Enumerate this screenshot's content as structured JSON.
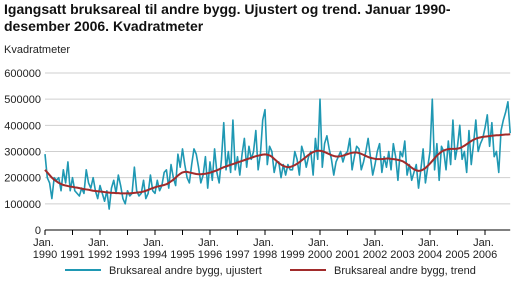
{
  "chart_data": {
    "type": "line",
    "title": [
      "Igangsatt bruksareal til andre bygg. Ujustert og trend. Januar 1990-",
      "desember 2006. Kvadratmeter"
    ],
    "y_label": "Kvadratmeter",
    "categories": [
      "Jan. 1990",
      null,
      null,
      null,
      null,
      null,
      null,
      null,
      null,
      null,
      null,
      null,
      "1991",
      null,
      null,
      null,
      null,
      null,
      null,
      null,
      null,
      null,
      null,
      null,
      "Jan. 1992",
      null,
      null,
      null,
      null,
      null,
      null,
      null,
      null,
      null,
      null,
      null,
      "1993",
      null,
      null,
      null,
      null,
      null,
      null,
      null,
      null,
      null,
      null,
      null,
      "Jan. 1994",
      null,
      null,
      null,
      null,
      null,
      null,
      null,
      null,
      null,
      null,
      null,
      "1995",
      null,
      null,
      null,
      null,
      null,
      null,
      null,
      null,
      null,
      null,
      null,
      "Jan. 1996",
      null,
      null,
      null,
      null,
      null,
      null,
      null,
      null,
      null,
      null,
      null,
      "1997",
      null,
      null,
      null,
      null,
      null,
      null,
      null,
      null,
      null,
      null,
      null,
      "Jan. 1998",
      null,
      null,
      null,
      null,
      null,
      null,
      null,
      null,
      null,
      null,
      null,
      "1999",
      null,
      null,
      null,
      null,
      null,
      null,
      null,
      null,
      null,
      null,
      null,
      "Jan. 2000",
      null,
      null,
      null,
      null,
      null,
      null,
      null,
      null,
      null,
      null,
      null,
      "2001",
      null,
      null,
      null,
      null,
      null,
      null,
      null,
      null,
      null,
      null,
      null,
      "Jan. 2002",
      null,
      null,
      null,
      null,
      null,
      null,
      null,
      null,
      null,
      null,
      null,
      "2003",
      null,
      null,
      null,
      null,
      null,
      null,
      null,
      null,
      null,
      null,
      null,
      "Jan. 2004",
      null,
      null,
      null,
      null,
      null,
      null,
      null,
      null,
      null,
      null,
      null,
      "2005",
      null,
      null,
      null,
      null,
      null,
      null,
      null,
      null,
      null,
      null,
      null,
      "Jan. 2006",
      null,
      null,
      null,
      null,
      null,
      null,
      null,
      null,
      null,
      null,
      null
    ],
    "series": [
      {
        "name": "Bruksareal andre bygg, ujustert",
        "color": "#1f98b3",
        "values": [
          290000,
          200000,
          180000,
          120000,
          200000,
          190000,
          200000,
          150000,
          230000,
          180000,
          260000,
          150000,
          200000,
          150000,
          140000,
          130000,
          160000,
          140000,
          230000,
          180000,
          160000,
          200000,
          150000,
          120000,
          170000,
          140000,
          110000,
          150000,
          80000,
          160000,
          190000,
          140000,
          210000,
          170000,
          120000,
          100000,
          150000,
          130000,
          140000,
          240000,
          150000,
          130000,
          140000,
          190000,
          120000,
          140000,
          210000,
          150000,
          140000,
          190000,
          150000,
          170000,
          220000,
          230000,
          160000,
          250000,
          200000,
          170000,
          290000,
          240000,
          310000,
          250000,
          200000,
          180000,
          250000,
          310000,
          290000,
          240000,
          180000,
          210000,
          280000,
          160000,
          260000,
          190000,
          310000,
          220000,
          180000,
          270000,
          410000,
          230000,
          300000,
          220000,
          420000,
          230000,
          280000,
          210000,
          290000,
          350000,
          240000,
          320000,
          270000,
          300000,
          380000,
          230000,
          290000,
          420000,
          460000,
          250000,
          320000,
          300000,
          220000,
          260000,
          260000,
          200000,
          250000,
          210000,
          250000,
          230000,
          230000,
          300000,
          270000,
          210000,
          320000,
          290000,
          240000,
          280000,
          300000,
          210000,
          350000,
          270000,
          500000,
          240000,
          330000,
          360000,
          310000,
          270000,
          210000,
          260000,
          280000,
          300000,
          260000,
          290000,
          300000,
          350000,
          230000,
          280000,
          320000,
          310000,
          230000,
          260000,
          300000,
          350000,
          280000,
          210000,
          250000,
          300000,
          330000,
          220000,
          280000,
          240000,
          300000,
          230000,
          330000,
          280000,
          190000,
          300000,
          280000,
          340000,
          210000,
          250000,
          190000,
          220000,
          250000,
          160000,
          230000,
          310000,
          180000,
          240000,
          300000,
          500000,
          230000,
          330000,
          190000,
          320000,
          300000,
          230000,
          340000,
          250000,
          420000,
          270000,
          320000,
          400000,
          270000,
          300000,
          220000,
          380000,
          250000,
          330000,
          420000,
          300000,
          330000,
          350000,
          390000,
          440000,
          320000,
          410000,
          280000,
          300000,
          220000,
          380000,
          420000,
          450000,
          490000,
          370000
        ]
      },
      {
        "name": "Bruksareal andre bygg, trend",
        "color": "#a12b2b",
        "values": [
          230000,
          220000,
          210000,
          200000,
          192000,
          186000,
          180000,
          176000,
          172000,
          170000,
          168000,
          166000,
          165000,
          163000,
          162000,
          160000,
          158000,
          156000,
          155000,
          154000,
          152000,
          150000,
          149000,
          148000,
          147000,
          146000,
          145000,
          144000,
          143000,
          142000,
          142000,
          141000,
          141000,
          140000,
          140000,
          140000,
          140000,
          140000,
          141000,
          142000,
          143000,
          144000,
          145000,
          147000,
          150000,
          153000,
          157000,
          160000,
          163000,
          166000,
          168000,
          170000,
          172000,
          175000,
          180000,
          186000,
          192000,
          200000,
          208000,
          215000,
          220000,
          222000,
          222000,
          220000,
          218000,
          216000,
          214000,
          213000,
          213000,
          214000,
          215000,
          217000,
          219000,
          222000,
          225000,
          228000,
          232000,
          236000,
          240000,
          243000,
          246000,
          249000,
          252000,
          255000,
          258000,
          261000,
          264000,
          267000,
          270000,
          273000,
          276000,
          279000,
          282000,
          284000,
          286000,
          288000,
          289000,
          288000,
          285000,
          280000,
          272000,
          264000,
          256000,
          250000,
          245000,
          242000,
          240000,
          241000,
          244000,
          248000,
          253000,
          259000,
          266000,
          273000,
          280000,
          287000,
          293000,
          298000,
          301000,
          303000,
          303000,
          301000,
          298000,
          294000,
          290000,
          286000,
          283000,
          281000,
          281000,
          282000,
          284000,
          287000,
          290000,
          293000,
          295000,
          296000,
          296000,
          294000,
          291000,
          287000,
          283000,
          279000,
          276000,
          274000,
          272000,
          271000,
          271000,
          271000,
          272000,
          273000,
          273000,
          272000,
          271000,
          270000,
          268000,
          266000,
          263000,
          258000,
          252000,
          245000,
          238000,
          232000,
          228000,
          226000,
          227000,
          231000,
          237000,
          245000,
          254000,
          264000,
          274000,
          284000,
          292000,
          299000,
          304000,
          307000,
          309000,
          310000,
          310000,
          310000,
          311000,
          313000,
          317000,
          322000,
          328000,
          334000,
          340000,
          345000,
          349000,
          352000,
          354000,
          356000,
          357000,
          358000,
          359000,
          360000,
          361000,
          362000,
          362000,
          363000,
          364000,
          365000,
          365000,
          366000
        ]
      }
    ],
    "ylim": [
      0,
      600000
    ],
    "yticks": [
      0,
      100000,
      200000,
      300000,
      400000,
      500000,
      600000
    ],
    "grid": true,
    "legend": "bottom"
  }
}
